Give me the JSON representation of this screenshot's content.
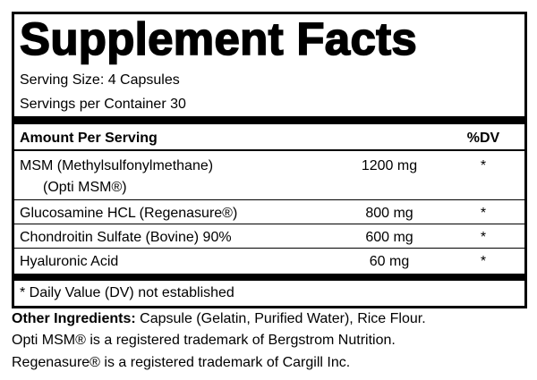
{
  "title": "Supplement Facts",
  "serving_size": "Serving Size:  4 Capsules",
  "servings_per_container": "Servings per Container 30",
  "table": {
    "header": {
      "amount": "Amount Per Serving",
      "dv": "%DV"
    },
    "rows": [
      {
        "name": "MSM (Methylsulfonylmethane)",
        "sub": "(Opti MSM®)",
        "amount": "1200 mg",
        "dv": "*"
      },
      {
        "name": "Glucosamine HCL (Regenasure®)",
        "amount": "800 mg",
        "dv": "*"
      },
      {
        "name": "Chondroitin Sulfate (Bovine) 90%",
        "amount": "600 mg",
        "dv": "*"
      },
      {
        "name": "Hyaluronic Acid",
        "amount": "60 mg",
        "dv": "*"
      }
    ]
  },
  "footnote": "* Daily Value (DV) not established",
  "other_ingredients": {
    "label": "Other Ingredients:",
    "text": "Capsule (Gelatin, Purified Water), Rice Flour."
  },
  "notes": [
    "Opti MSM® is a registered trademark of Bergstrom Nutrition.",
    "Regenasure® is a registered trademark of Cargill Inc."
  ]
}
